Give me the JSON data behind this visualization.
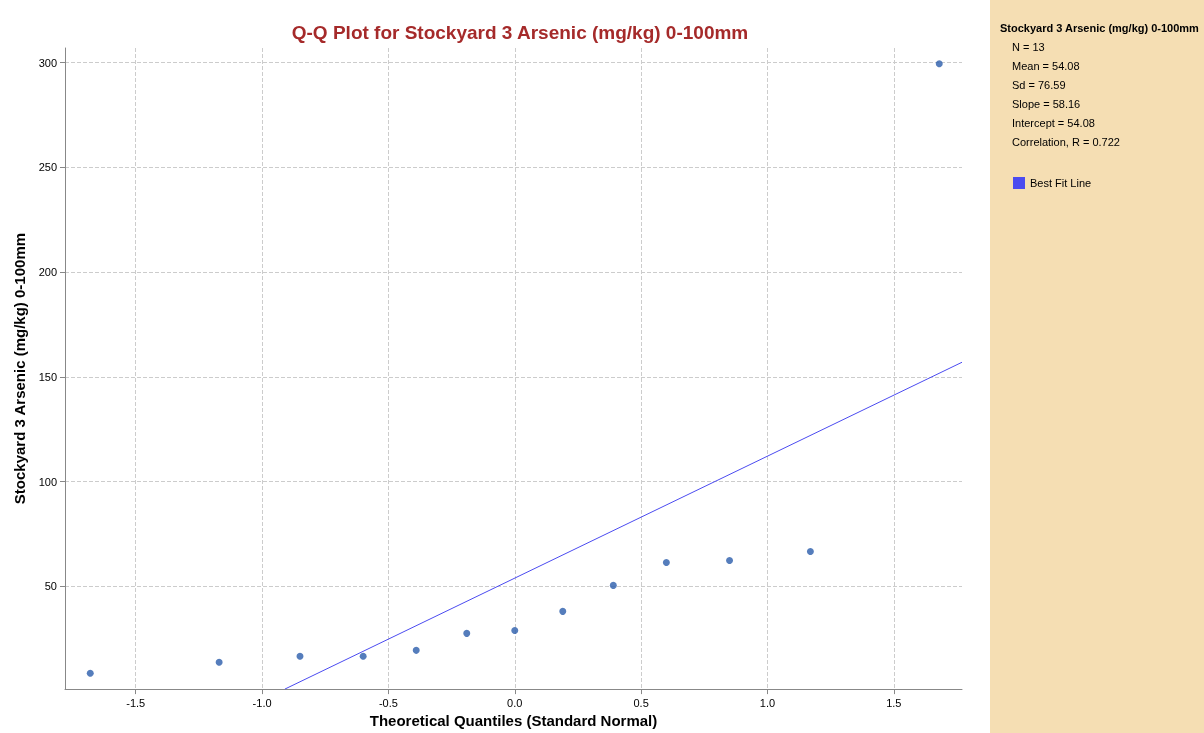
{
  "chart_data": {
    "type": "scatter",
    "title": "Q-Q Plot for Stockyard 3 Arsenic (mg/kg) 0-100mm",
    "xlabel": "Theoretical Quantiles (Standard Normal)",
    "ylabel": "Stockyard 3 Arsenic (mg/kg) 0-100mm",
    "legend_title": "Stockyard 3 Arsenic (mg/kg) 0-100mm",
    "annotations": [
      "N = 13",
      "Mean = 54.08",
      "Sd = 76.59",
      "Slope = 58.16",
      "Intercept = 54.08",
      "Correlation, R = 0.722"
    ],
    "series": [
      {
        "color": "#2b5cab",
        "marker": "circle",
        "x": [
          -1.68,
          -1.17,
          -0.85,
          -0.6,
          -0.39,
          -0.19,
          0,
          0.19,
          0.39,
          0.6,
          0.85,
          1.17,
          1.68
        ],
        "values": [
          8.6,
          13.8,
          16.7,
          16.7,
          19.5,
          27.6,
          29,
          38.1,
          50.5,
          61.4,
          62.4,
          66.7,
          299.5
        ]
      },
      {
        "type": "line",
        "name": "Best Fit Line",
        "color": "#4b4bf0",
        "marker": "none",
        "x": [
          -0.91,
          1.77
        ],
        "values": [
          1,
          157
        ]
      }
    ],
    "xlim": [
      -1.78,
      1.77
    ],
    "ylim": [
      1,
      307
    ],
    "xticks": [
      -1.5,
      {
        "value": -1,
        "label": "-1.0"
      },
      -0.5,
      {
        "value": 0,
        "label": "0.0"
      },
      0.5,
      {
        "value": 1,
        "label": "1.0"
      },
      1.5
    ],
    "yticks": [
      50,
      100,
      150,
      200,
      250,
      300
    ],
    "grid": true,
    "legend": "right"
  }
}
